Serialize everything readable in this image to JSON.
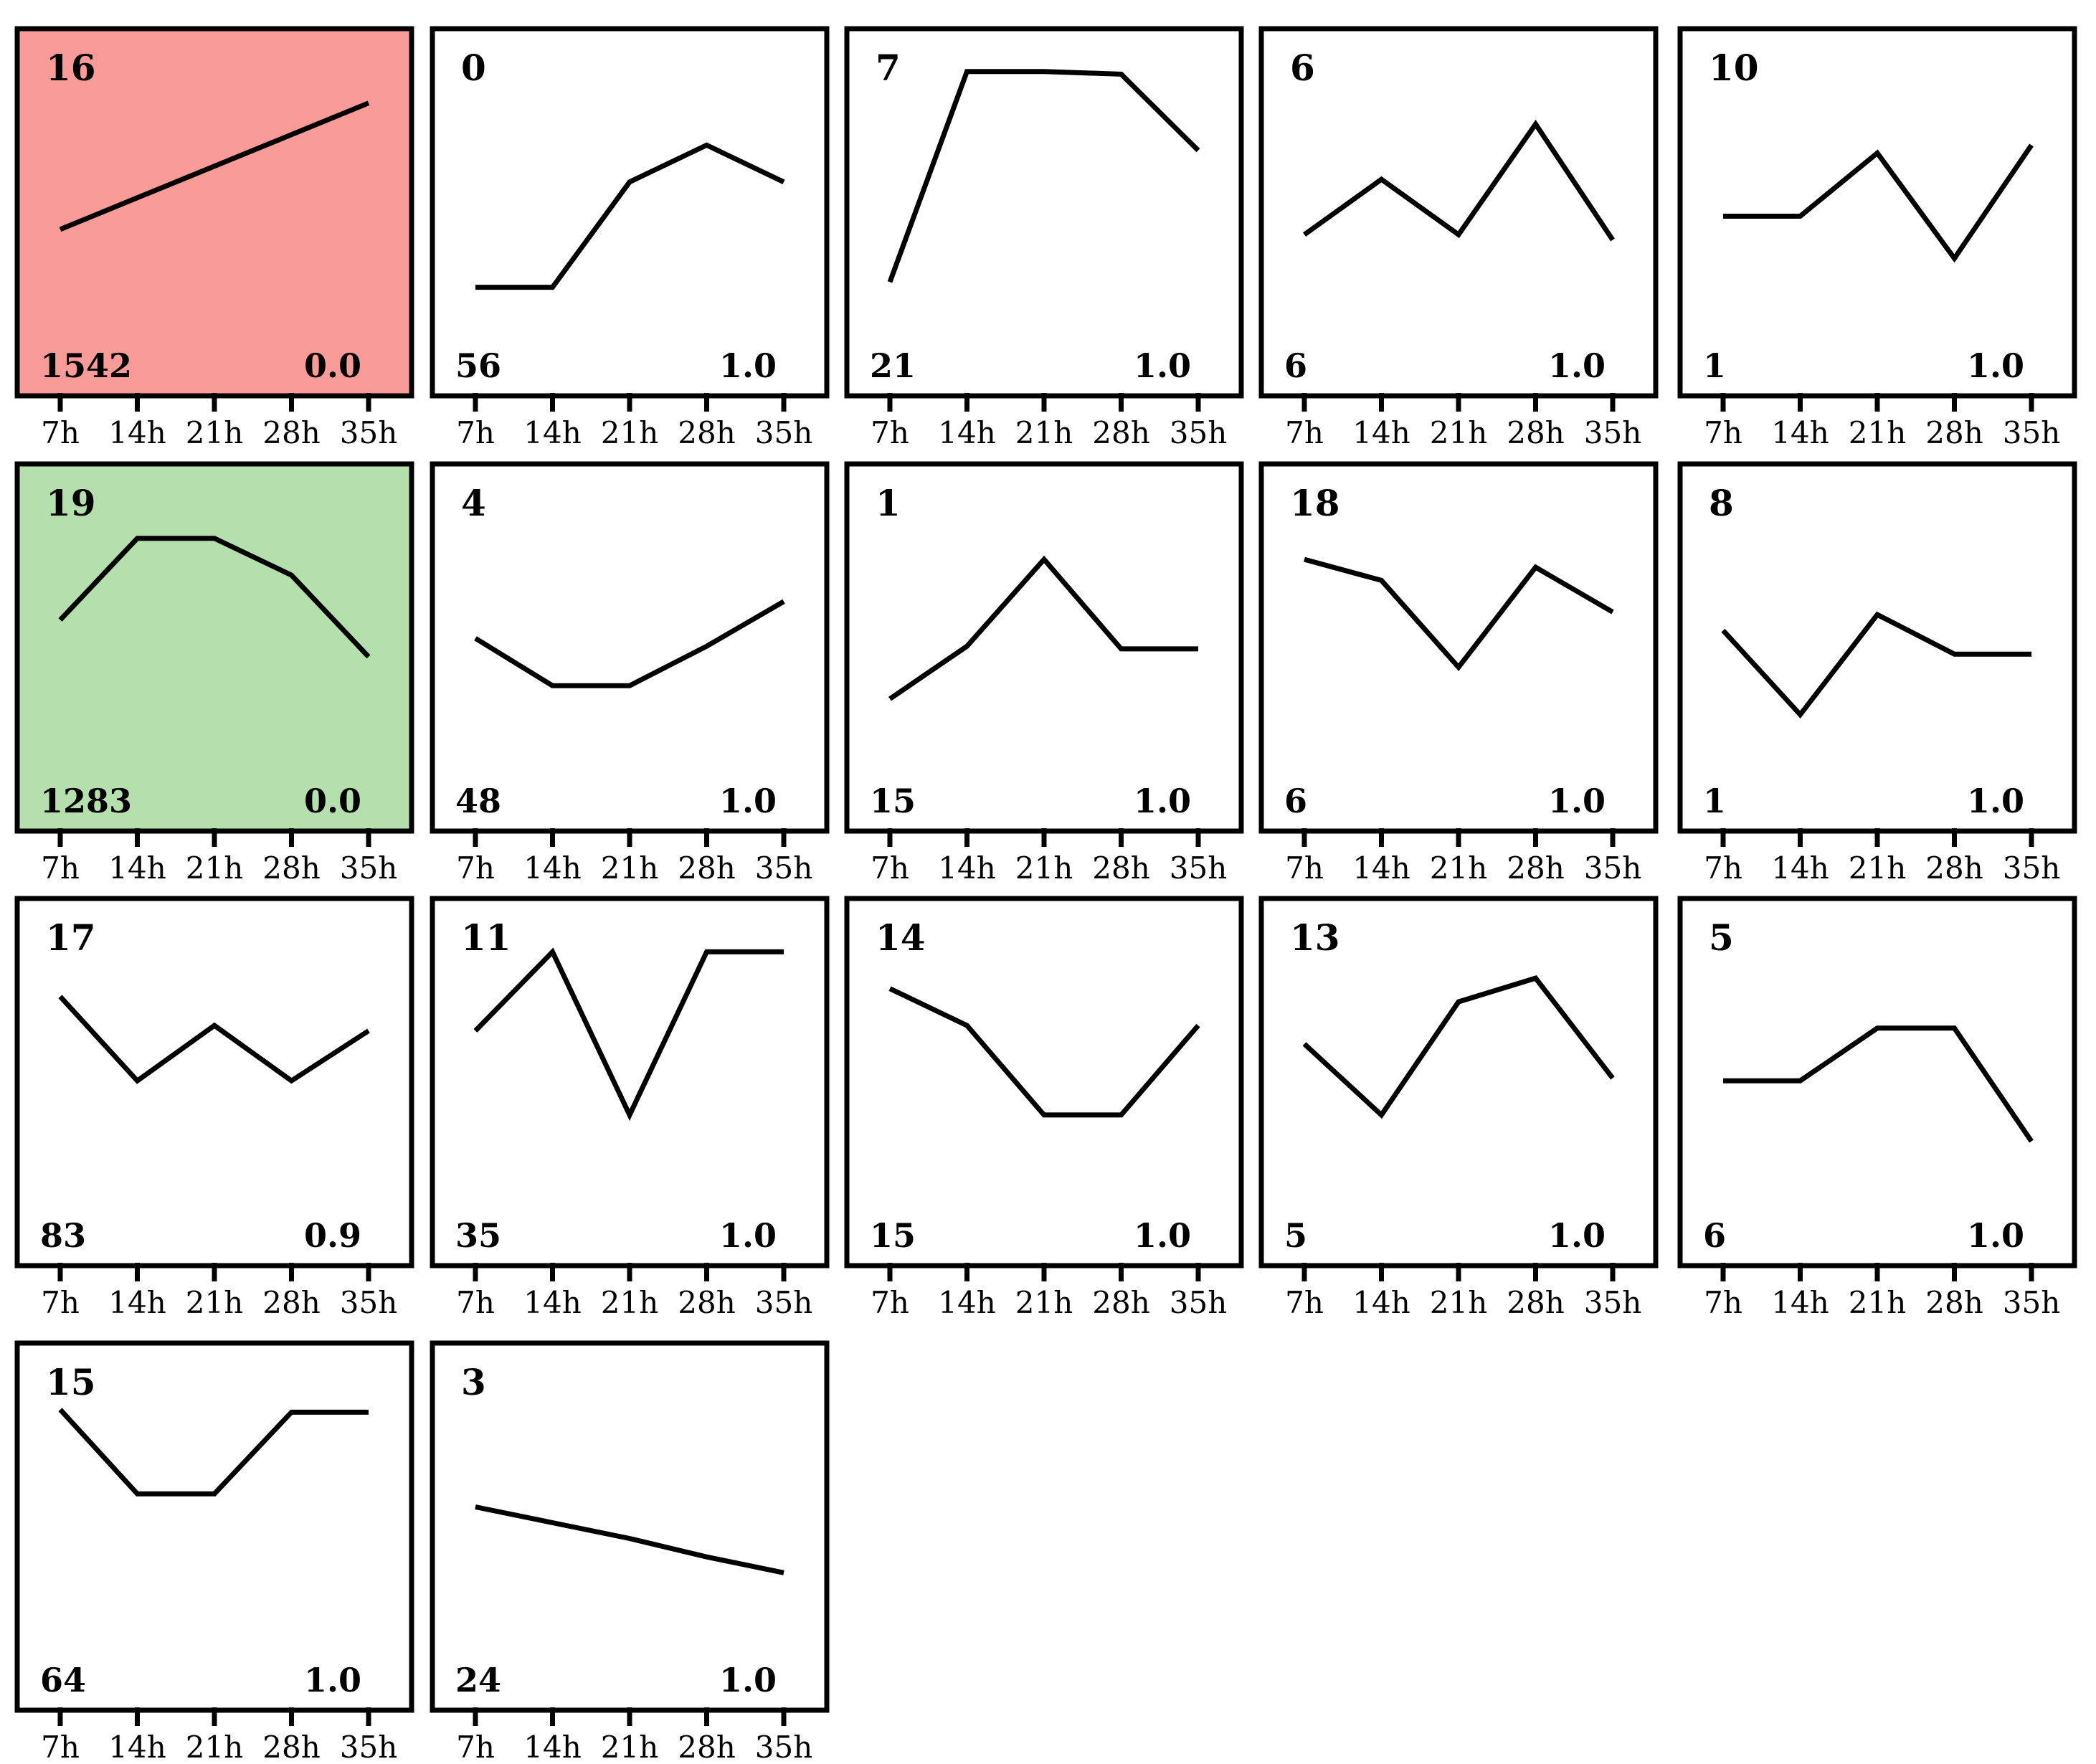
{
  "chart_data": {
    "type": "line",
    "title": "",
    "xlabel": "",
    "ylabel": "",
    "categories": [
      "7h",
      "14h",
      "21h",
      "28h",
      "35h"
    ],
    "colors": {
      "highlight_red": "#f99b99",
      "highlight_green": "#b6dfae",
      "default": "#ffffff"
    },
    "ylim": [
      0,
      1
    ],
    "panels": [
      {
        "id": "16",
        "count": "1542",
        "pvalue": "0.0",
        "highlight": "red",
        "values": [
          0.36,
          0.48,
          0.6,
          0.72,
          0.84
        ]
      },
      {
        "id": "0",
        "count": "56",
        "pvalue": "1.0",
        "highlight": "none",
        "values": [
          0.14,
          0.14,
          0.54,
          0.68,
          0.54
        ]
      },
      {
        "id": "7",
        "count": "21",
        "pvalue": "1.0",
        "highlight": "none",
        "values": [
          0.16,
          0.96,
          0.96,
          0.95,
          0.66
        ]
      },
      {
        "id": "6",
        "count": "6",
        "pvalue": "1.0",
        "highlight": "none",
        "values": [
          0.34,
          0.55,
          0.34,
          0.76,
          0.32
        ]
      },
      {
        "id": "10",
        "count": "1",
        "pvalue": "1.0",
        "highlight": "none",
        "values": [
          0.41,
          0.41,
          0.65,
          0.25,
          0.68
        ]
      },
      {
        "id": "19",
        "count": "1283",
        "pvalue": "0.0",
        "highlight": "green",
        "values": [
          0.53,
          0.84,
          0.84,
          0.7,
          0.39
        ]
      },
      {
        "id": "4",
        "count": "48",
        "pvalue": "1.0",
        "highlight": "none",
        "values": [
          0.46,
          0.28,
          0.28,
          0.43,
          0.6
        ]
      },
      {
        "id": "1",
        "count": "15",
        "pvalue": "1.0",
        "highlight": "none",
        "values": [
          0.23,
          0.43,
          0.76,
          0.42,
          0.42
        ]
      },
      {
        "id": "18",
        "count": "6",
        "pvalue": "1.0",
        "highlight": "none",
        "values": [
          0.76,
          0.68,
          0.35,
          0.73,
          0.56
        ]
      },
      {
        "id": "8",
        "count": "1",
        "pvalue": "1.0",
        "highlight": "none",
        "values": [
          0.49,
          0.17,
          0.55,
          0.4,
          0.4
        ]
      },
      {
        "id": "17",
        "count": "83",
        "pvalue": "0.9",
        "highlight": "none",
        "values": [
          0.75,
          0.43,
          0.64,
          0.43,
          0.62
        ]
      },
      {
        "id": "11",
        "count": "35",
        "pvalue": "1.0",
        "highlight": "none",
        "values": [
          0.62,
          0.92,
          0.3,
          0.92,
          0.92
        ]
      },
      {
        "id": "14",
        "count": "15",
        "pvalue": "1.0",
        "highlight": "none",
        "values": [
          0.78,
          0.64,
          0.3,
          0.3,
          0.64
        ]
      },
      {
        "id": "13",
        "count": "5",
        "pvalue": "1.0",
        "highlight": "none",
        "values": [
          0.57,
          0.3,
          0.73,
          0.82,
          0.44
        ]
      },
      {
        "id": "5",
        "count": "6",
        "pvalue": "1.0",
        "highlight": "none",
        "values": [
          0.43,
          0.43,
          0.63,
          0.63,
          0.2
        ]
      },
      {
        "id": "15",
        "count": "64",
        "pvalue": "1.0",
        "highlight": "none",
        "values": [
          0.87,
          0.55,
          0.55,
          0.86,
          0.86
        ]
      },
      {
        "id": "3",
        "count": "24",
        "pvalue": "1.0",
        "highlight": "none",
        "values": [
          0.5,
          0.44,
          0.38,
          0.31,
          0.25
        ]
      }
    ]
  }
}
